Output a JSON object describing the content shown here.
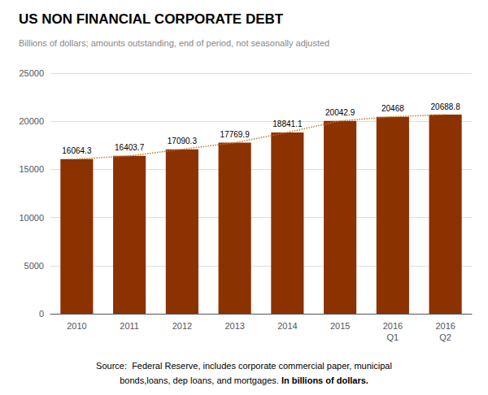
{
  "chart_data": {
    "type": "bar",
    "title": "US NON FINANCIAL CORPORATE DEBT",
    "subtitle": "Billions of dollars; amounts outstanding, end of period, not seasonally adjusted",
    "categories": [
      "2010",
      "2011",
      "2012",
      "2013",
      "2014",
      "2015",
      "2016\nQ1",
      "2016\nQ2"
    ],
    "series": [
      {
        "type": "bar",
        "color": "#8B3200",
        "values": [
          16064.3,
          16403.7,
          17090.3,
          17769.9,
          18841.1,
          20042.9,
          20468.0,
          20688.8
        ],
        "value_labels": [
          "16064.3",
          "16403.7",
          "17090.3",
          "17769.9",
          "18841.1",
          "20042.9",
          "20468",
          "20688.8"
        ],
        "data_labels": true
      },
      {
        "type": "line",
        "color": "#C87828",
        "line_style": "dotted",
        "values": [
          16064.3,
          16403.7,
          17090.3,
          17769.9,
          18841.1,
          20042.9,
          20468.0,
          20688.8
        ]
      }
    ],
    "ylim": [
      0,
      25000
    ],
    "yticks": [
      0,
      5000,
      10000,
      15000,
      20000,
      25000
    ],
    "grid": true,
    "source": [
      "Source:  Federal Reserve, includes corporate commercial paper, municipal",
      [
        "bonds,loans, dep loans, and mortgages. ",
        "In billions of dollars."
      ]
    ]
  }
}
